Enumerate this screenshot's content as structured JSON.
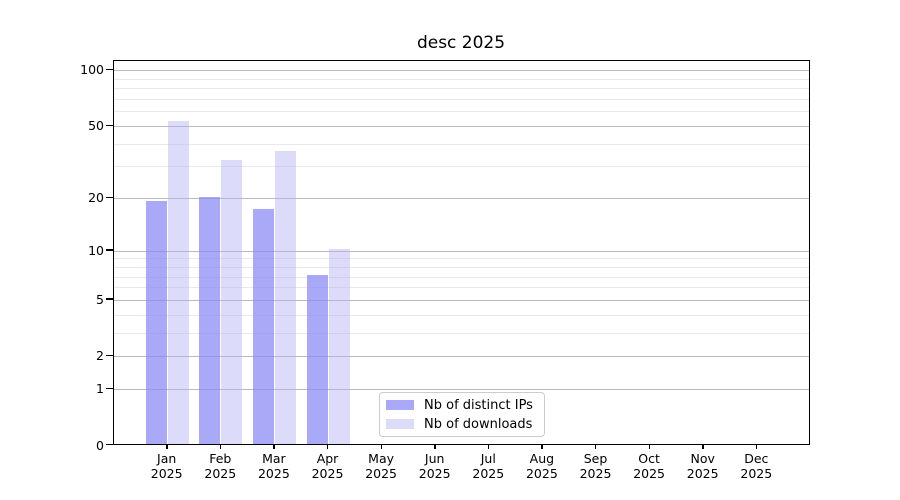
{
  "chart_data": {
    "type": "bar",
    "title": "desc 2025",
    "categories": [
      "Jan 2025",
      "Feb 2025",
      "Mar 2025",
      "Apr 2025",
      "May 2025",
      "Jun 2025",
      "Jul 2025",
      "Aug 2025",
      "Sep 2025",
      "Oct 2025",
      "Nov 2025",
      "Dec 2025"
    ],
    "series": [
      {
        "name": "Nb of distinct IPs",
        "color": "#a9a9f7",
        "fill": "rgba(136,136,244,0.72)",
        "values": [
          19,
          20,
          17,
          7,
          0,
          0,
          0,
          0,
          0,
          0,
          0,
          0
        ]
      },
      {
        "name": "Nb of downloads",
        "color": "#dcdcf9",
        "fill": "rgba(177,177,244,0.45)",
        "values": [
          52,
          32,
          36,
          10,
          0,
          0,
          0,
          0,
          0,
          0,
          0,
          0
        ]
      }
    ],
    "xlabel": "",
    "ylabel": "",
    "yscale": "log(1+x)",
    "ylim": [
      0,
      110
    ],
    "y_major_ticks": [
      0,
      1,
      2,
      5,
      10,
      20,
      50,
      100
    ],
    "y_minor_gridlines": [
      3,
      4,
      6,
      7,
      8,
      9,
      30,
      40,
      60,
      70,
      80,
      90
    ],
    "grid": "horizontal major + minor",
    "legend_position": "inside lower-center-left"
  },
  "colors": {
    "background": "#ffffff",
    "axis": "#000000",
    "grid_major": "#bbbbbb",
    "grid_minor": "#e9e9e9",
    "legend_border": "#cccccc",
    "text": "#000000"
  }
}
